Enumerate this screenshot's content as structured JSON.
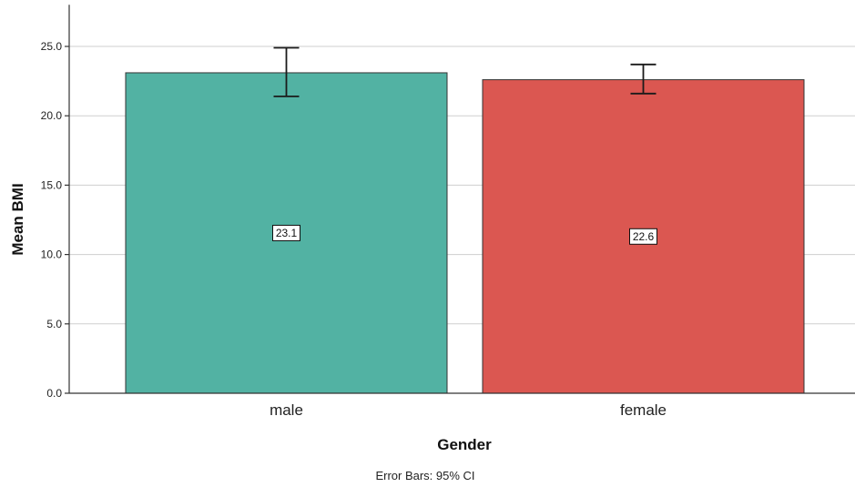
{
  "chart_data": {
    "type": "bar",
    "categories": [
      "male",
      "female"
    ],
    "values": [
      23.1,
      22.6
    ],
    "data_labels": [
      "23.1",
      "22.6"
    ],
    "error_bars": [
      {
        "low": 21.4,
        "high": 24.9
      },
      {
        "low": 21.6,
        "high": 23.7
      }
    ],
    "colors": [
      "#52B2A3",
      "#DB5751"
    ],
    "xlabel": "Gender",
    "ylabel": "Mean BMI",
    "ylim": [
      0,
      28
    ],
    "yticks": [
      0,
      5,
      10,
      15,
      20,
      25
    ],
    "ytick_labels": [
      "0.0",
      "5.0",
      "10.0",
      "15.0",
      "20.0",
      "25.0"
    ],
    "footnote": "Error Bars: 95% CI",
    "grid": true
  }
}
